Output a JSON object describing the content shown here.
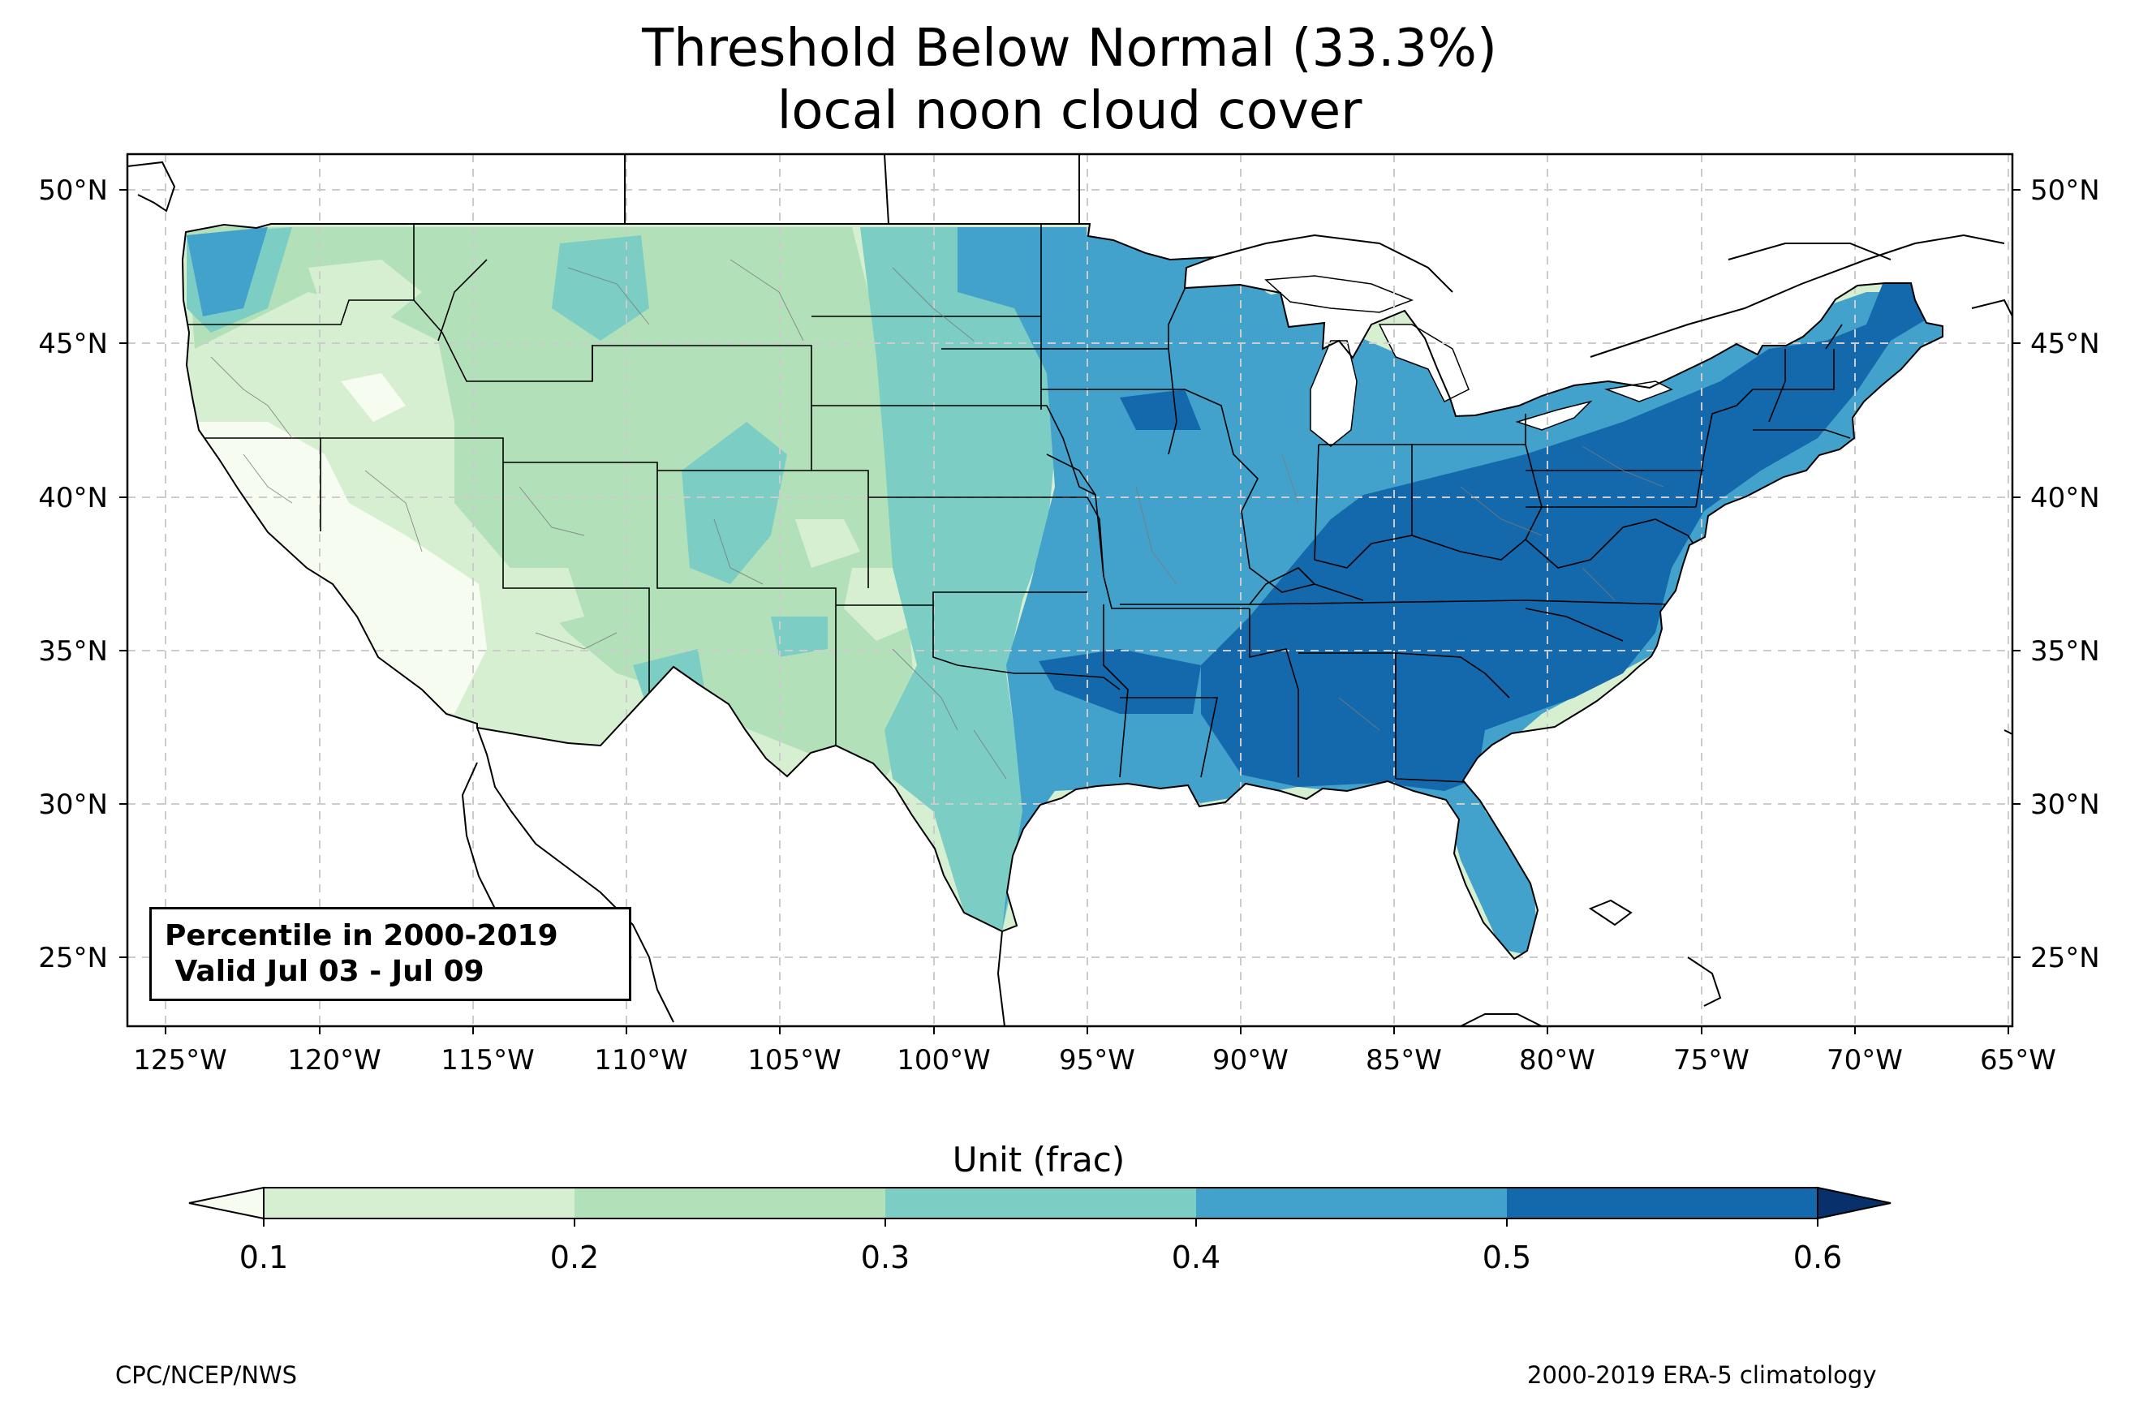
{
  "title": {
    "line1": "Threshold Below Normal (33.3%)",
    "line2": "local noon cloud cover"
  },
  "map": {
    "lon_ticks": [
      "125°W",
      "120°W",
      "115°W",
      "110°W",
      "105°W",
      "100°W",
      "95°W",
      "90°W",
      "85°W",
      "80°W",
      "75°W",
      "70°W",
      "65°W"
    ],
    "lat_ticks": [
      "50°N",
      "45°N",
      "40°N",
      "35°N",
      "30°N",
      "25°N"
    ],
    "gridlines": true,
    "lon_range": [
      -126.3,
      -64.9
    ],
    "lat_range": [
      22.8,
      51.2
    ]
  },
  "note": {
    "line1": "Percentile in 2000-2019",
    "line2": " Valid Jul 03 - Jul 09"
  },
  "colorbar": {
    "label": "Unit (frac)",
    "ticks": [
      "0.1",
      "0.2",
      "0.3",
      "0.4",
      "0.5",
      "0.6"
    ],
    "colors": [
      "#f7fcf0",
      "#d7efd1",
      "#b2e1b9",
      "#7ccdc4",
      "#43a2cb",
      "#1468ac",
      "#08306b"
    ]
  },
  "footer": {
    "left": "CPC/NCEP/NWS",
    "right": "2000-2019 ERA-5 climatology"
  }
}
